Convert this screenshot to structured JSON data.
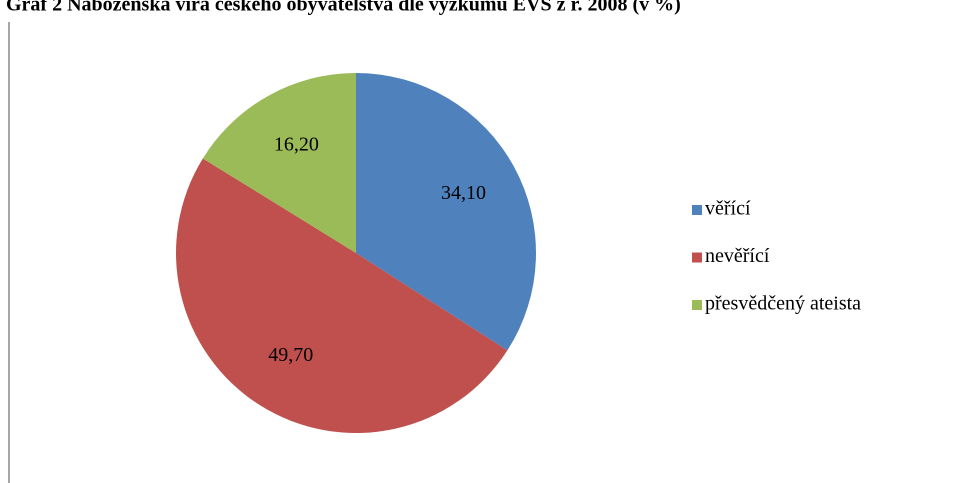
{
  "chart_data": {
    "type": "pie",
    "title": "Graf 2 Náboženská víra českého obyvatelstva dle výzkumu EVS z r. 2008 (v %)",
    "categories": [
      "věřící",
      "nevěřící",
      "přesvědčený ateista"
    ],
    "values": [
      34.1,
      49.7,
      16.2
    ],
    "value_labels": [
      "34,10",
      "49,70",
      "16,20"
    ],
    "colors": [
      "#4f81bd",
      "#c0504d",
      "#9bbb59"
    ],
    "legend": "right"
  }
}
